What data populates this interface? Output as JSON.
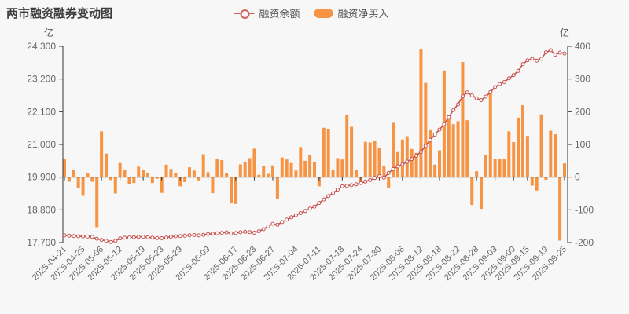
{
  "title": "两市融资融券变动图",
  "legend": {
    "line_label": "融资余额",
    "bar_label": "融资净买入"
  },
  "colors": {
    "bar": "#f79444",
    "line": "#c5524e",
    "marker_fill": "#ffffff",
    "axis": "#333333",
    "label": "#666666",
    "background": "#f7f7f7"
  },
  "left_axis": {
    "unit": "亿",
    "min": 17700,
    "max": 24300,
    "tick_labels": [
      "24,300",
      "23,200",
      "22,100",
      "21,000",
      "19,900",
      "18,800",
      "17,700"
    ]
  },
  "right_axis": {
    "unit": "亿",
    "min": -200,
    "max": 400,
    "tick_labels": [
      "400",
      "300",
      "200",
      "100",
      "0",
      "-100",
      "-200"
    ]
  },
  "chart_data": {
    "type": "bar+line",
    "title": "两市融资融券变动图",
    "x_tick_labels": [
      "2025-04-21",
      "2025-04-25",
      "2025-05-06",
      "2025-05-12",
      "2025-05-19",
      "2025-05-23",
      "2025-05-29",
      "2025-06-09",
      "2025-06-17",
      "2025-06-23",
      "2025-06-27",
      "2025-07-04",
      "2025-07-11",
      "2025-07-18",
      "2025-07-24",
      "2025-07-30",
      "2025-08-06",
      "2025-08-12",
      "2025-08-18",
      "2025-08-22",
      "2025-08-28",
      "2025-09-03",
      "2025-09-09",
      "2025-09-15",
      "2025-09-19",
      "2025-09-25"
    ],
    "x_tick_indices": [
      0,
      4,
      8,
      12,
      17,
      21,
      25,
      31,
      37,
      41,
      45,
      50,
      55,
      60,
      64,
      68,
      73,
      77,
      81,
      85,
      89,
      93,
      97,
      100,
      104,
      108
    ],
    "series": [
      {
        "name": "融资余额",
        "type": "line",
        "axis": "left",
        "values": [
          17940,
          17930,
          17920,
          17910,
          17905,
          17900,
          17890,
          17830,
          17790,
          17760,
          17715,
          17760,
          17840,
          17860,
          17870,
          17880,
          17890,
          17895,
          17880,
          17865,
          17850,
          17845,
          17870,
          17895,
          17910,
          17920,
          17930,
          17945,
          17950,
          17940,
          17960,
          17985,
          17995,
          18010,
          18025,
          18040,
          18005,
          18020,
          18045,
          18060,
          18050,
          18030,
          18080,
          18150,
          18240,
          18330,
          18300,
          18390,
          18470,
          18550,
          18620,
          18690,
          18760,
          18840,
          18910,
          19030,
          19150,
          19260,
          19360,
          19480,
          19590,
          19610,
          19630,
          19660,
          19700,
          19750,
          19800,
          19870,
          19930,
          19880,
          20040,
          20170,
          20260,
          20330,
          20420,
          20510,
          20620,
          20750,
          20950,
          21150,
          21330,
          21500,
          21680,
          21920,
          22160,
          22350,
          22620,
          22750,
          22650,
          22550,
          22490,
          22610,
          22760,
          22930,
          23030,
          23100,
          23220,
          23330,
          23470,
          23700,
          23830,
          23880,
          23820,
          23880,
          24100,
          24170,
          24020,
          24090,
          24060
        ]
      },
      {
        "name": "融资净买入",
        "type": "bar",
        "axis": "right",
        "values": [
          55,
          -14,
          22,
          -34,
          -57,
          11,
          -14,
          -153,
          140,
          72,
          -9,
          -50,
          43,
          21,
          -22,
          -18,
          32,
          22,
          12,
          -18,
          -5,
          -48,
          38,
          25,
          12,
          -28,
          -15,
          30,
          20,
          -10,
          70,
          15,
          -49,
          55,
          52,
          12,
          -78,
          -82,
          39,
          47,
          58,
          87,
          7,
          34,
          10,
          36,
          -66,
          60,
          54,
          43,
          20,
          92,
          50,
          68,
          46,
          -28,
          151,
          148,
          23,
          58,
          54,
          191,
          154,
          23,
          -14,
          108,
          106,
          112,
          88,
          34,
          -34,
          166,
          79,
          115,
          125,
          86,
          74,
          392,
          288,
          146,
          38,
          82,
          326,
          190,
          162,
          171,
          352,
          174,
          -85,
          18,
          -97,
          67,
          259,
          55,
          55,
          55,
          140,
          107,
          182,
          220,
          126,
          -26,
          -41,
          192,
          -8,
          142,
          131,
          -194,
          42
        ]
      }
    ],
    "left_ylim": [
      17700,
      24300
    ],
    "right_ylim": [
      -200,
      400
    ],
    "grid": false,
    "legend_position": "top-center"
  }
}
